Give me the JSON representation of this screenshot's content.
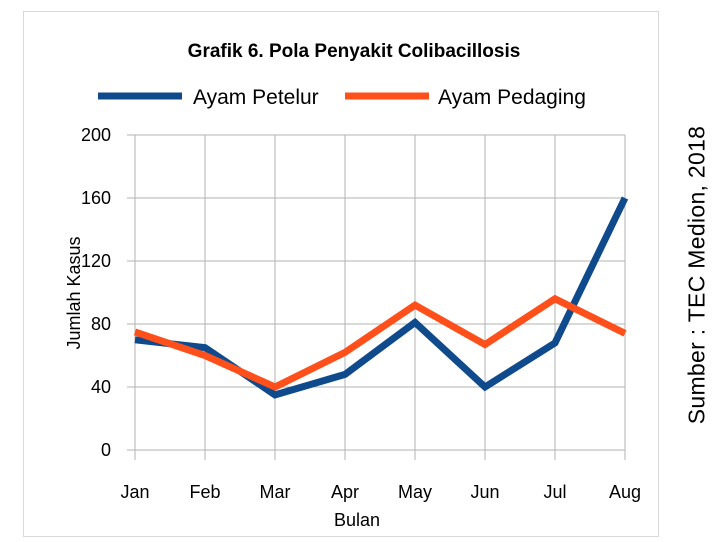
{
  "chart_data": {
    "type": "line",
    "title": "Grafik 6. Pola Penyakit Colibacillosis",
    "xlabel": "Bulan",
    "ylabel": "Jumlah Kasus",
    "categories": [
      "Jan",
      "Feb",
      "Mar",
      "Apr",
      "May",
      "Jun",
      "Jul",
      "Aug"
    ],
    "ylim": [
      0,
      200
    ],
    "yticks": [
      0,
      40,
      80,
      120,
      160,
      200
    ],
    "grid": true,
    "legend": "top",
    "series": [
      {
        "name": "Ayam Petelur",
        "color": "#0e4a8c",
        "values": [
          70,
          65,
          35,
          48,
          81,
          40,
          68,
          160
        ]
      },
      {
        "name": "Ayam Pedaging",
        "color": "#ff4f1a",
        "values": [
          75,
          60,
          40,
          62,
          92,
          67,
          96,
          74
        ]
      }
    ]
  },
  "source_note": "Sumber : TEC Medion, 2018"
}
